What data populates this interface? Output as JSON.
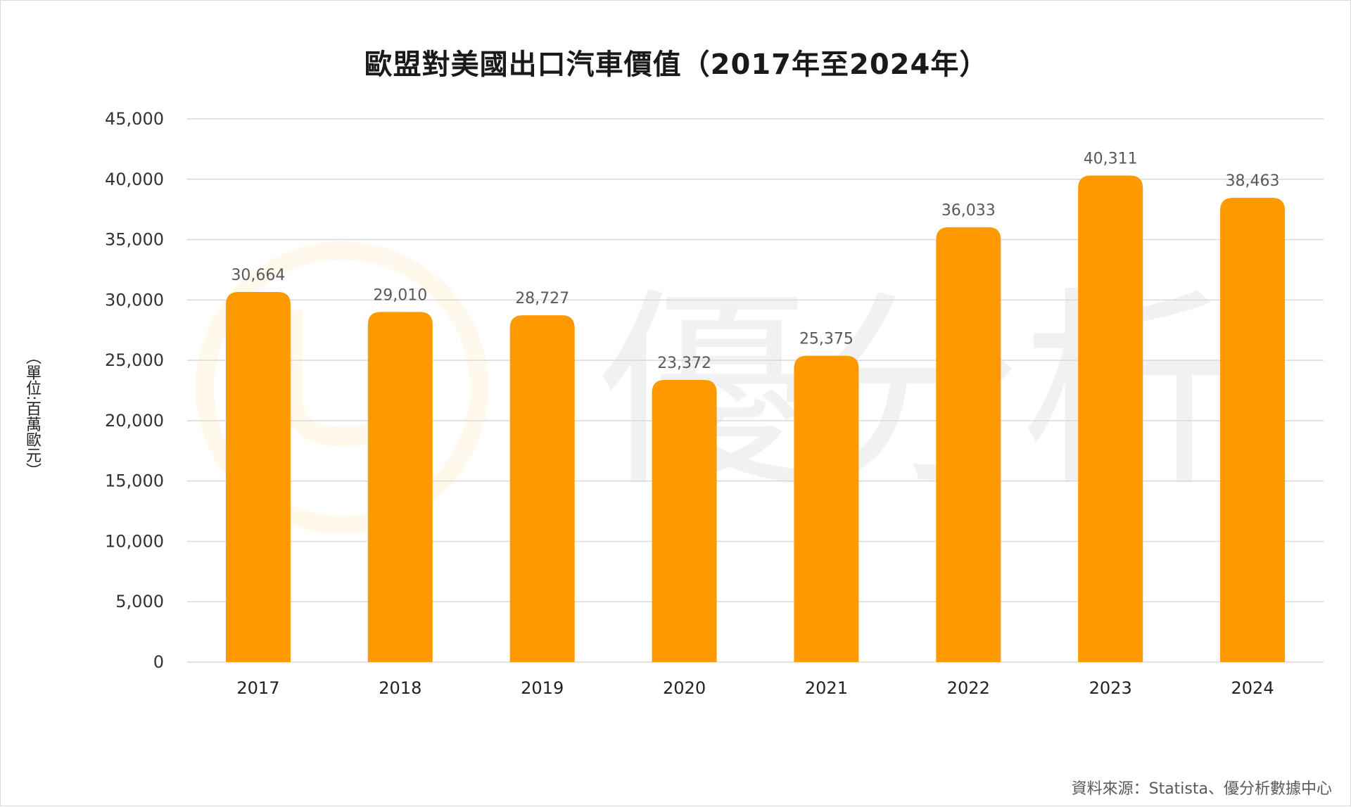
{
  "chart_data": {
    "type": "bar",
    "title": "歐盟對美國出口汽車價值（2017年至2024年）",
    "ylabel": "（單位:百萬歐元）",
    "xlabel": "",
    "categories": [
      "2017",
      "2018",
      "2019",
      "2020",
      "2021",
      "2022",
      "2023",
      "2024"
    ],
    "values": [
      30664,
      29010,
      28727,
      23372,
      25375,
      36033,
      40311,
      38463
    ],
    "data_labels": [
      "30,664",
      "29,010",
      "28,727",
      "23,372",
      "25,375",
      "36,033",
      "40,311",
      "38,463"
    ],
    "ylim": [
      0,
      45000
    ],
    "yticks": [
      0,
      5000,
      10000,
      15000,
      20000,
      25000,
      30000,
      35000,
      40000,
      45000
    ],
    "ytick_labels": [
      "0",
      "5,000",
      "10,000",
      "15,000",
      "20,000",
      "25,000",
      "30,000",
      "35,000",
      "40,000",
      "45,000"
    ],
    "grid": true,
    "legend": "none",
    "bar_color": "#FF9900",
    "grid_color": "#d9d9d9"
  },
  "source": "資料來源：Statista、優分析數據中心",
  "watermark": {
    "text": "優分析",
    "logo_color": "#FFB000"
  }
}
